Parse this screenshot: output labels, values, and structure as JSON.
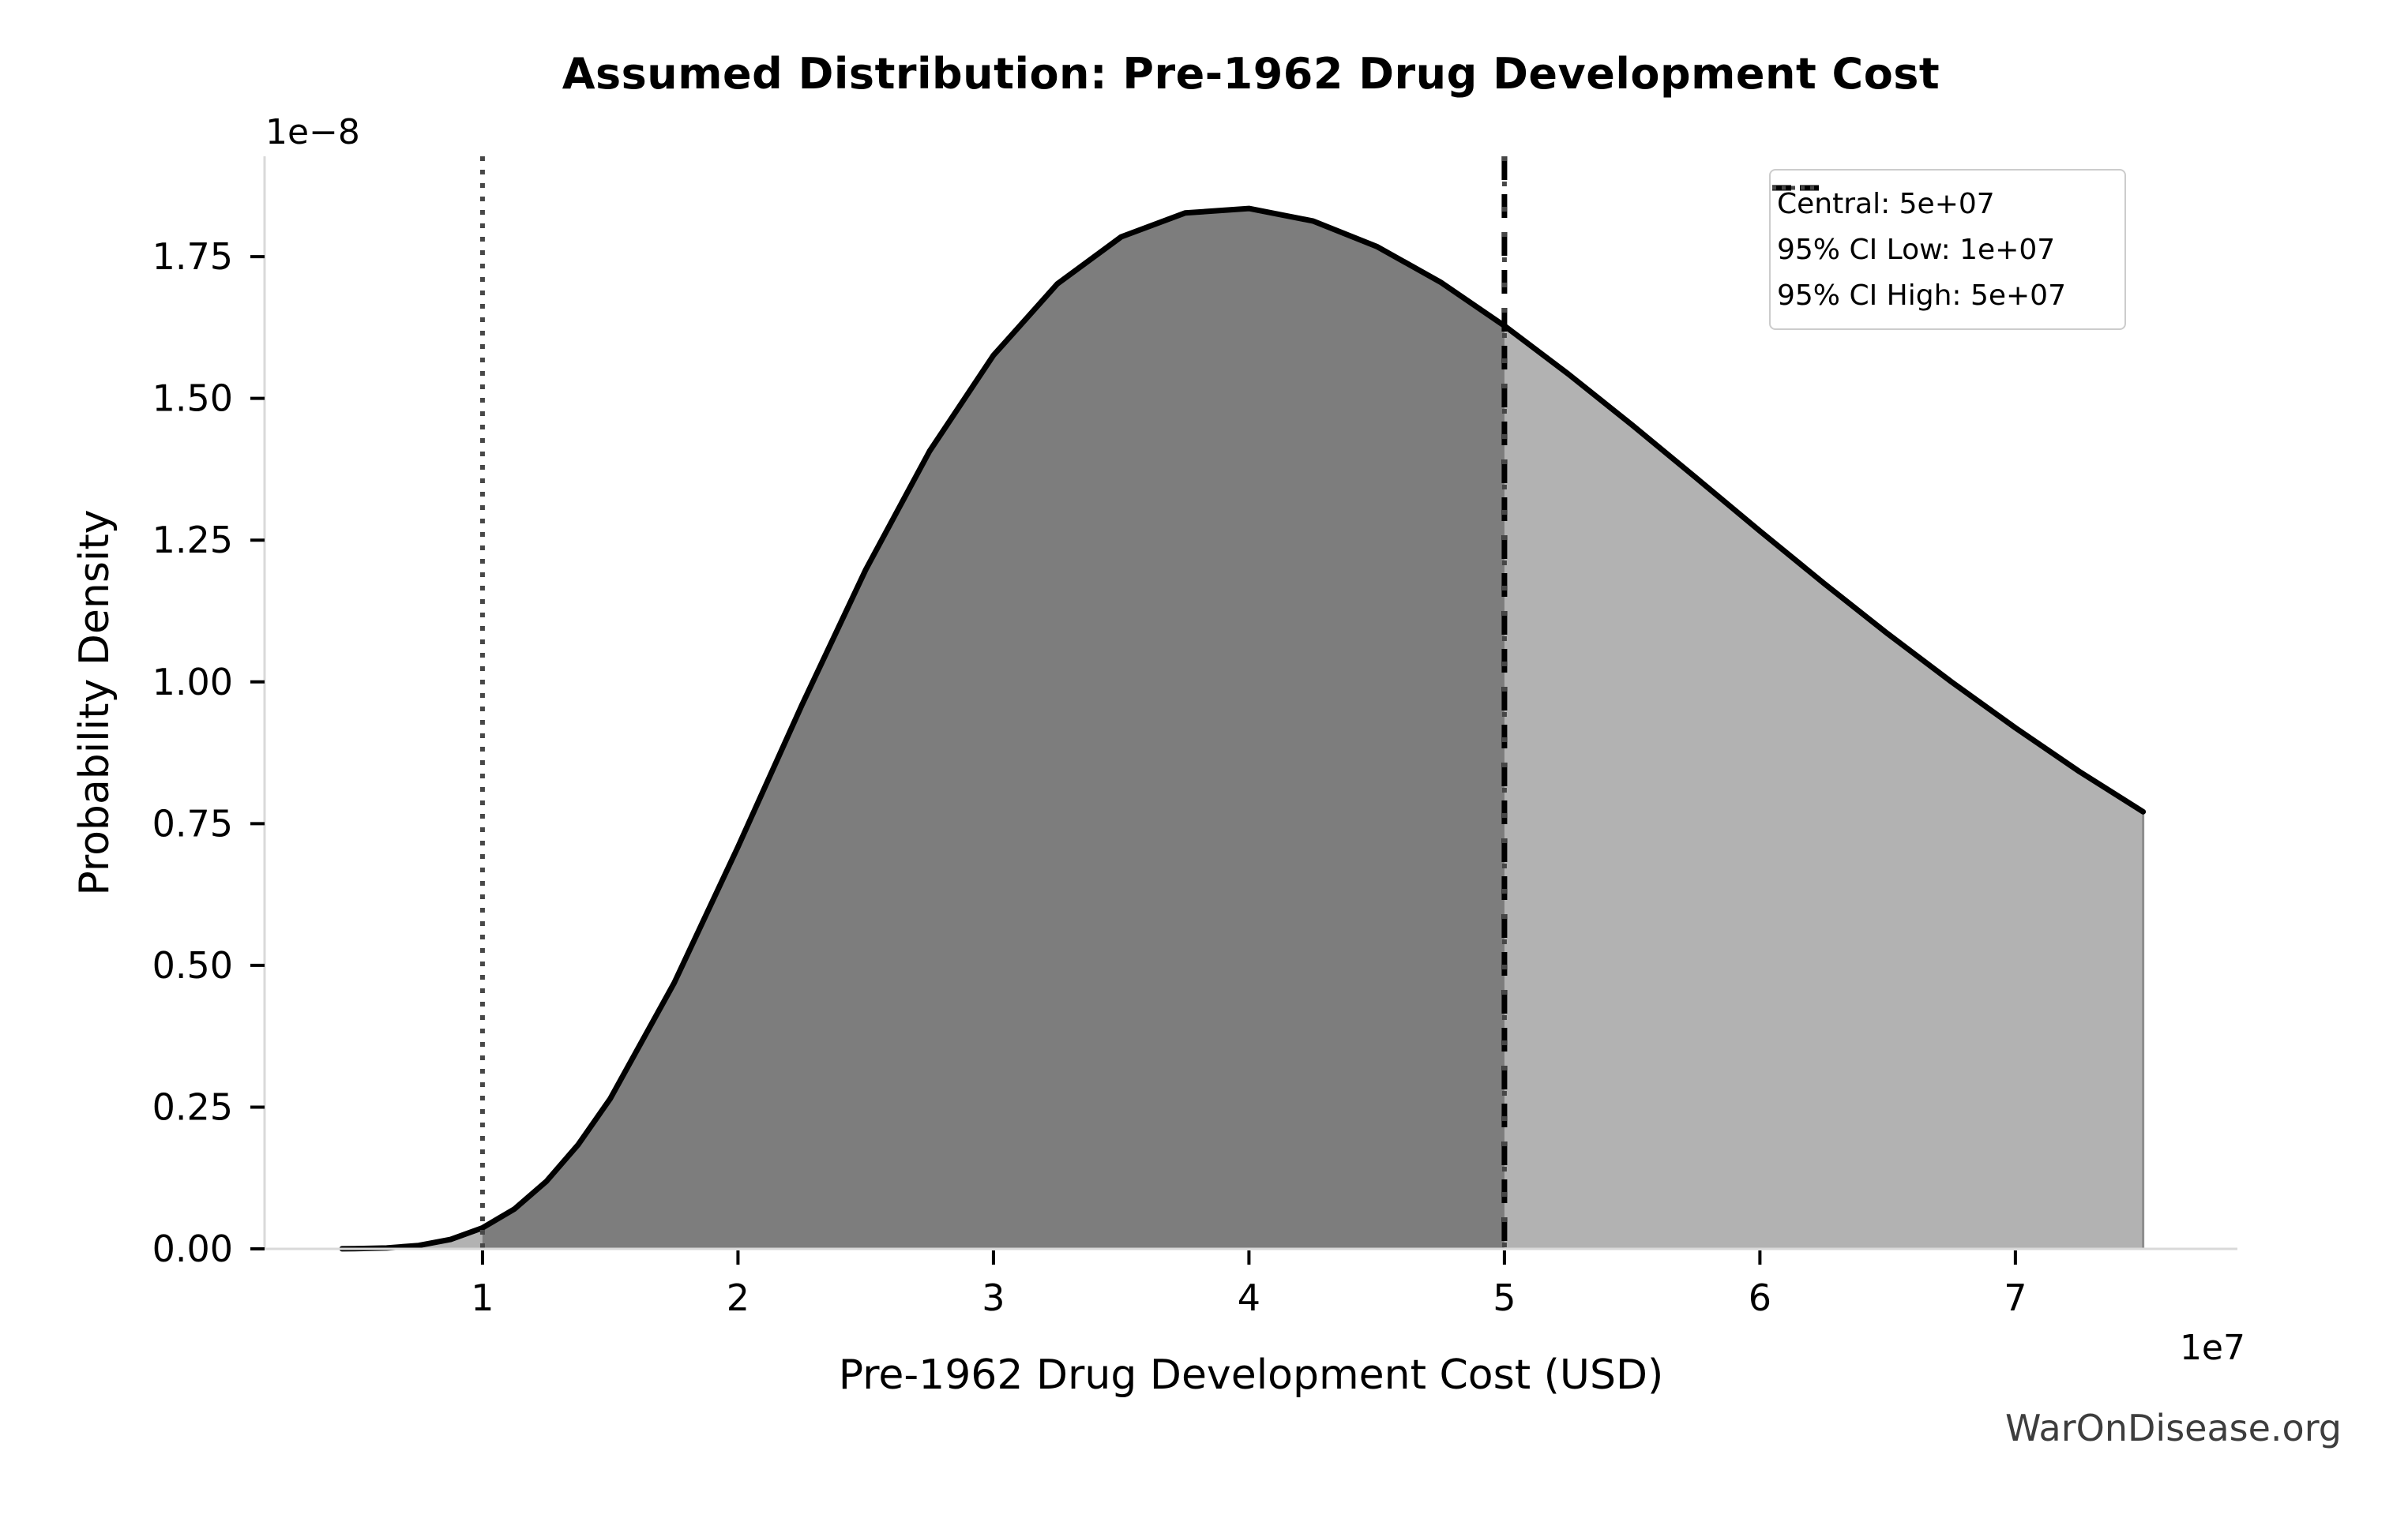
{
  "title": "Assumed Distribution: Pre-1962 Drug Development Cost",
  "watermark": "WarOnDisease.org",
  "axes": {
    "xlabel": "Pre-1962 Drug Development Cost (USD)",
    "ylabel": "Probability Density",
    "x_offset_label": "1e7",
    "y_offset_label": "1e−8",
    "x_ticks": [
      1,
      2,
      3,
      4,
      5,
      6,
      7
    ],
    "y_ticks": [
      "0.00",
      "0.25",
      "0.50",
      "0.75",
      "1.00",
      "1.25",
      "1.50",
      "1.75"
    ],
    "xlim": [
      0.147,
      7.869
    ],
    "ylim": [
      0,
      1.927
    ],
    "grid": false
  },
  "legend": {
    "position": "upper right",
    "items": [
      {
        "label": "Central: 5e+07",
        "style": "dashed",
        "color": "#000000"
      },
      {
        "label": "95% CI Low: 1e+07",
        "style": "dotted",
        "color": "#474747"
      },
      {
        "label": "95% CI High: 5e+07",
        "style": "dotted",
        "color": "#474747"
      }
    ]
  },
  "colors": {
    "curve": "#000000",
    "fill_base": "#b2b2b2",
    "fill_ci": "#7d7d7d",
    "fill_edge": "#8e8e8e",
    "central_line": "#000000",
    "ci_line": "#474747",
    "spine": "#d9d9d9",
    "tick": "#000000",
    "watermark": "#3d3d3d"
  },
  "chart_data": {
    "type": "area",
    "title": "Assumed Distribution: Pre-1962 Drug Development Cost",
    "xlabel": "Pre-1962 Drug Development Cost (USD)",
    "ylabel": "Probability Density",
    "x_scale_factor": "1e7",
    "y_scale_factor": "1e-8",
    "central": 5.0,
    "ci_low": 1.0,
    "ci_high": 5.0,
    "shaded_ci_region": [
      1.0,
      5.0
    ],
    "distribution": "lognormal-like density, median 5e7, sigma ~0.49, truncated at 7.5e7",
    "peak": {
      "x": 3.95,
      "y": 1.835
    },
    "curve": {
      "points": [
        [
          0.45,
          0.0001
        ],
        [
          0.5,
          0.0003
        ],
        [
          0.625,
          0.0016
        ],
        [
          0.75,
          0.006
        ],
        [
          0.875,
          0.0166
        ],
        [
          1.0,
          0.037
        ],
        [
          1.125,
          0.0703
        ],
        [
          1.25,
          0.119
        ],
        [
          1.375,
          0.184
        ],
        [
          1.5,
          0.265
        ],
        [
          1.75,
          0.469
        ],
        [
          2.0,
          0.709
        ],
        [
          2.25,
          0.959
        ],
        [
          2.5,
          1.198
        ],
        [
          2.75,
          1.407
        ],
        [
          3.0,
          1.576
        ],
        [
          3.25,
          1.702
        ],
        [
          3.5,
          1.785
        ],
        [
          3.75,
          1.827
        ],
        [
          4.0,
          1.835
        ],
        [
          4.25,
          1.813
        ],
        [
          4.5,
          1.768
        ],
        [
          4.75,
          1.705
        ],
        [
          5.0,
          1.628
        ],
        [
          5.25,
          1.543
        ],
        [
          5.5,
          1.453
        ],
        [
          5.75,
          1.36
        ],
        [
          6.0,
          1.266
        ],
        [
          6.25,
          1.174
        ],
        [
          6.5,
          1.085
        ],
        [
          6.75,
          1.0
        ],
        [
          7.0,
          0.919
        ],
        [
          7.25,
          0.842
        ],
        [
          7.5,
          0.771
        ]
      ]
    }
  }
}
